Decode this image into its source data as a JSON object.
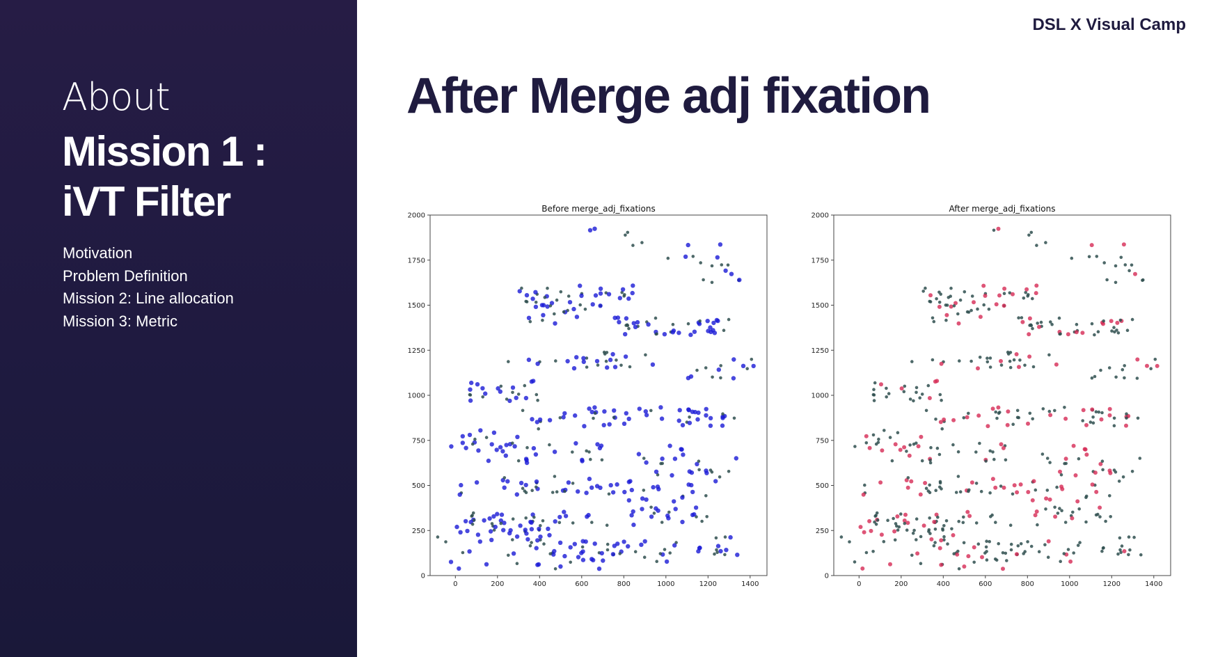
{
  "sidebar": {
    "about": "About",
    "title_line1": "Mission 1 :",
    "title_line2": "iVT Filter",
    "menu": [
      "Motivation",
      "Problem Definition",
      "Mission 2: Line allocation",
      "Mission 3: Metric"
    ]
  },
  "header": {
    "brand": "DSL X Visual Camp"
  },
  "page": {
    "title": "After Merge adj fixation"
  },
  "colors": {
    "sidebar_bg": "#221b42",
    "title": "#1f1b3f",
    "saccade_points": "#2f4f4f",
    "before_fixations": "#1a1ad6",
    "after_fixations": "#d62a55"
  },
  "chart_data": [
    {
      "type": "scatter",
      "title": "Before merge_adj_fixations",
      "xlim": [
        -120,
        1480
      ],
      "ylim": [
        0,
        2000
      ],
      "x_ticks": [
        0,
        200,
        400,
        600,
        800,
        1000,
        1200,
        1400
      ],
      "y_ticks": [
        0,
        250,
        500,
        750,
        1000,
        1250,
        1500,
        1750,
        2000
      ],
      "grid": false,
      "series": [
        {
          "color": "#1a1ad6"
        },
        {
          "color": "#2f4f4f"
        }
      ]
    },
    {
      "type": "scatter",
      "title": "After merge_adj_fixations",
      "xlim": [
        -120,
        1480
      ],
      "ylim": [
        0,
        2000
      ],
      "x_ticks": [
        0,
        200,
        400,
        600,
        800,
        1000,
        1200,
        1400
      ],
      "y_ticks": [
        0,
        250,
        500,
        750,
        1000,
        1250,
        1500,
        1750,
        2000
      ],
      "grid": false,
      "series": [
        {
          "color": "#d62a55"
        },
        {
          "color": "#2f4f4f"
        }
      ]
    }
  ]
}
